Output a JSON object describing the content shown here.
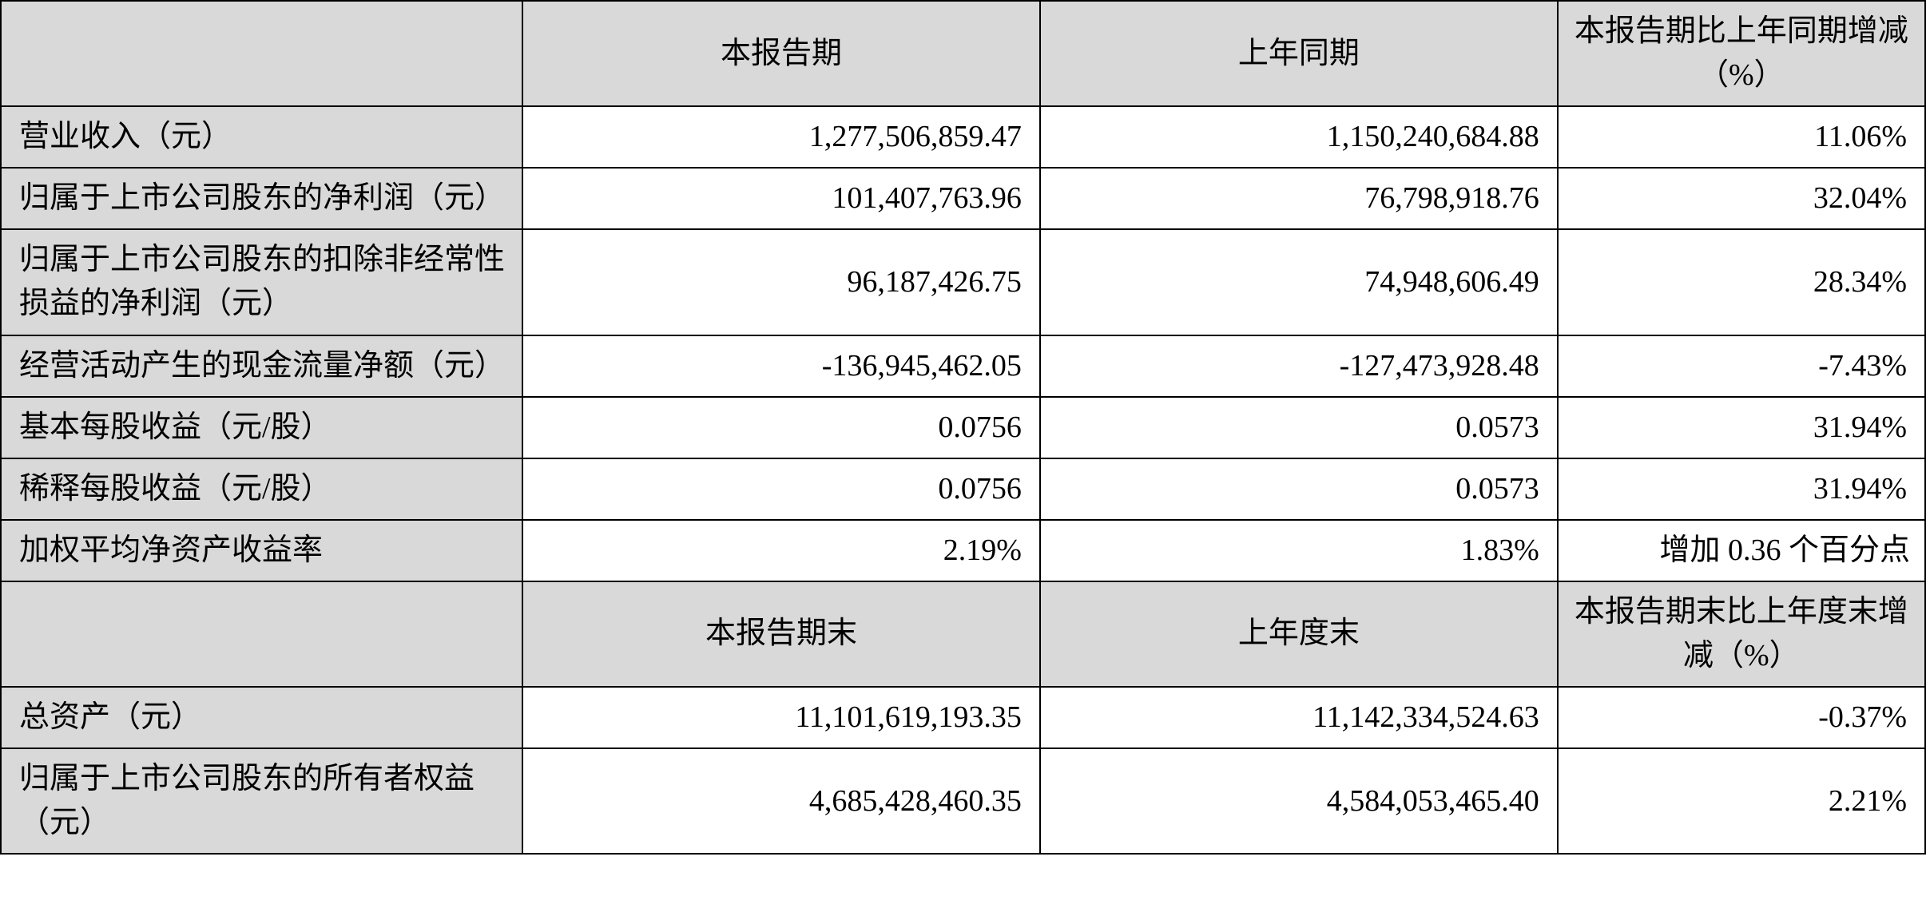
{
  "table": {
    "type": "table",
    "border_color": "#000000",
    "header_bg": "#d9d9d9",
    "cell_bg": "#ffffff",
    "font_family": "SimSun",
    "font_size_pt": 28,
    "headers1": {
      "blank": "",
      "c2": "本报告期",
      "c3": "上年同期",
      "c4": "本报告期比上年同期增减（%）"
    },
    "rows1": [
      {
        "label": "营业收入（元）",
        "a": "1,277,506,859.47",
        "b": "1,150,240,684.88",
        "c": "11.06%"
      },
      {
        "label": "归属于上市公司股东的净利润（元）",
        "a": "101,407,763.96",
        "b": "76,798,918.76",
        "c": "32.04%"
      },
      {
        "label": "归属于上市公司股东的扣除非经常性损益的净利润（元）",
        "a": "96,187,426.75",
        "b": "74,948,606.49",
        "c": "28.34%"
      },
      {
        "label": "经营活动产生的现金流量净额（元）",
        "a": "-136,945,462.05",
        "b": "-127,473,928.48",
        "c": "-7.43%"
      },
      {
        "label": "基本每股收益（元/股）",
        "a": "0.0756",
        "b": "0.0573",
        "c": "31.94%"
      },
      {
        "label": "稀释每股收益（元/股）",
        "a": "0.0756",
        "b": "0.0573",
        "c": "31.94%"
      },
      {
        "label": "加权平均净资产收益率",
        "a": "2.19%",
        "b": "1.83%",
        "c": "增加 0.36 个百分点"
      }
    ],
    "headers2": {
      "blank": "",
      "c2": "本报告期末",
      "c3": "上年度末",
      "c4": "本报告期末比上年度末增减（%）"
    },
    "rows2": [
      {
        "label": "总资产（元）",
        "a": "11,101,619,193.35",
        "b": "11,142,334,524.63",
        "c": "-0.37%"
      },
      {
        "label": "归属于上市公司股东的所有者权益（元）",
        "a": "4,685,428,460.35",
        "b": "4,584,053,465.40",
        "c": "2.21%"
      }
    ]
  }
}
